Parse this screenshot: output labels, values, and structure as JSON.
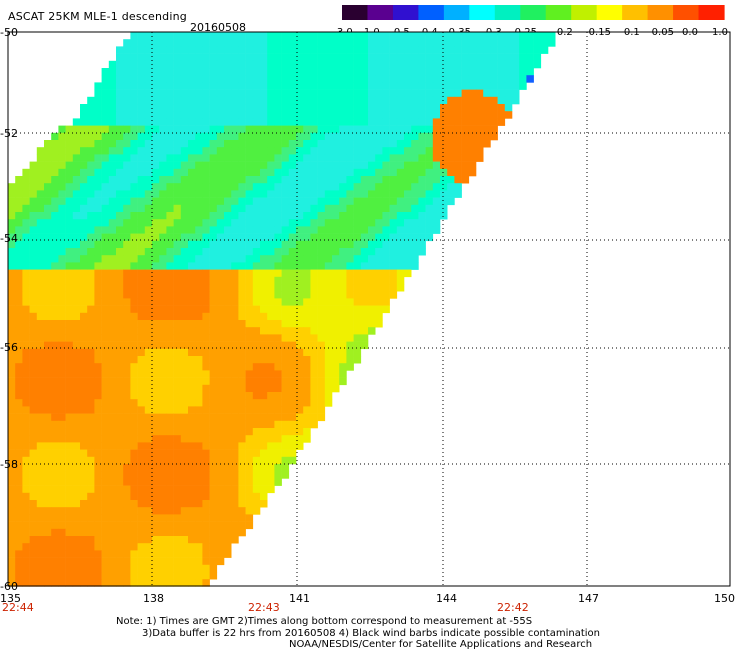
{
  "header": {
    "title": "ASCAT 25KM MLE-1 descending",
    "date": "20160508"
  },
  "colorbar": {
    "labels": [
      "-3.0",
      "-1.0",
      "-0.5",
      "-0.4",
      "-0.35",
      "-0.3",
      "-0.25",
      "-0.2",
      "-0.15",
      "-0.1",
      "-0.05",
      "0.0",
      "1.0"
    ],
    "colors": [
      "#2a0030",
      "#5a0090",
      "#3010d0",
      "#0060ff",
      "#00b0ff",
      "#00ffff",
      "#00f0c0",
      "#20f060",
      "#60f020",
      "#c0f000",
      "#ffff00",
      "#ffc000",
      "#ff9000",
      "#ff5000",
      "#ff2000"
    ]
  },
  "axes": {
    "lat_labels": [
      "-50",
      "-52",
      "-54",
      "-56",
      "-58",
      "-60"
    ],
    "lon_labels": [
      "135",
      "138",
      "141",
      "144",
      "147",
      "150"
    ],
    "time_labels": [
      "22:44",
      "22:43",
      "22:42"
    ]
  },
  "notes": [
    "Note: 1) Times are GMT 2)Times along bottom correspond to measurement at -55S",
    "3)Data buffer is 22 hrs from 20160508 4) Black wind barbs indicate possible contamination",
    "NOAA/NESDIS/Center for Satellite Applications and Research"
  ]
}
